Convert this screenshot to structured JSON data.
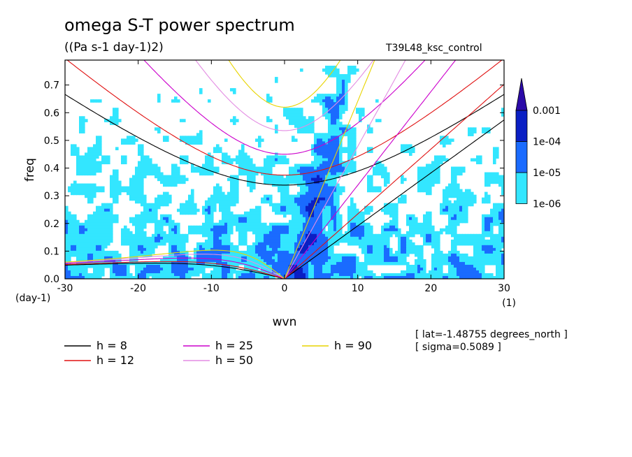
{
  "header": {
    "title": "omega S-T power spectrum",
    "units": "((Pa s-1 day-1)2)",
    "experiment": "T39L48_ksc_control"
  },
  "info": {
    "lat": "[ lat=-1.48755 degrees_north ]",
    "sigma": "[ sigma=0.5089 ]"
  },
  "chart_data": {
    "type": "heatmap",
    "title": "omega S-T power spectrum",
    "subtitle": "((Pa s-1 day-1)2)",
    "xlabel": "wvn",
    "ylabel": "freq",
    "x_unit_label": "(1)",
    "y_unit_label": "(day-1)",
    "xlim": [
      -30,
      30
    ],
    "ylim": [
      0,
      0.79
    ],
    "x_ticks": [
      -30,
      -20,
      -10,
      0,
      10,
      20,
      30
    ],
    "x_tick_labels": [
      "-30",
      "-20",
      "-10",
      "0",
      "10",
      "20",
      "30"
    ],
    "y_ticks": [
      0,
      0.1,
      0.2,
      0.3,
      0.4,
      0.5,
      0.6,
      0.7
    ],
    "y_tick_labels": [
      "0.0",
      "0.1",
      "0.2",
      "0.3",
      "0.4",
      "0.5",
      "0.6",
      "0.7"
    ],
    "colorbar": {
      "levels": [
        "1e-06",
        "1e-05",
        "1e-04",
        "0.001"
      ],
      "colors": [
        "#33e6ff",
        "#1a6bff",
        "#0a1fc4",
        "#2b0aa8"
      ],
      "extend": "max"
    },
    "legend": {
      "placement": "bottom",
      "entries": [
        {
          "label": "h =  8",
          "color": "#000000"
        },
        {
          "label": "h = 12",
          "color": "#e01010"
        },
        {
          "label": "h = 25",
          "color": "#cc00cc"
        },
        {
          "label": "h = 50",
          "color": "#e38ce3"
        },
        {
          "label": "h = 90",
          "color": "#e8d400"
        }
      ]
    },
    "dispersion_depths_m": [
      8,
      12,
      25,
      50,
      90
    ]
  }
}
